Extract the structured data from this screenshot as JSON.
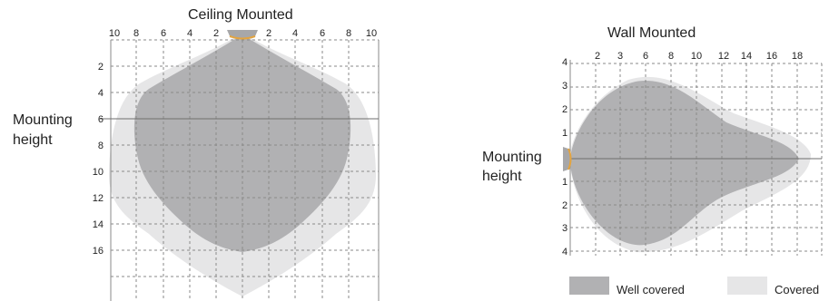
{
  "ceiling": {
    "title": "Ceiling Mounted",
    "mounting_label_line1": "Mounting",
    "mounting_label_line2": "height",
    "x_ticks": [
      "10",
      "8",
      "6",
      "4",
      "2",
      "2",
      "4",
      "6",
      "8",
      "10"
    ],
    "y_ticks": [
      "2",
      "4",
      "6",
      "8",
      "10",
      "12",
      "14",
      "16"
    ]
  },
  "wall": {
    "title": "Wall Mounted",
    "mounting_label_line1": "Mounting",
    "mounting_label_line2": "height",
    "x_ticks": [
      "2",
      "3",
      "6",
      "8",
      "10",
      "12",
      "14",
      "16",
      "18"
    ],
    "y_ticks_up": [
      "4",
      "3",
      "2",
      "1"
    ],
    "y_ticks_down": [
      "1",
      "2",
      "3",
      "4"
    ]
  },
  "legend": {
    "well_covered": "Well covered",
    "covered": "Covered"
  },
  "colors": {
    "well_covered": "#b1b1b3",
    "covered": "#e6e6e7",
    "grid": "#8a8a8a",
    "mount_line": "#6e6e6e",
    "sensor_body": "#a7a7a9",
    "sensor_accent": "#e3a440"
  },
  "icons": {
    "ceiling_sensor": "ceiling-sensor-icon",
    "wall_sensor": "wall-sensor-icon"
  }
}
